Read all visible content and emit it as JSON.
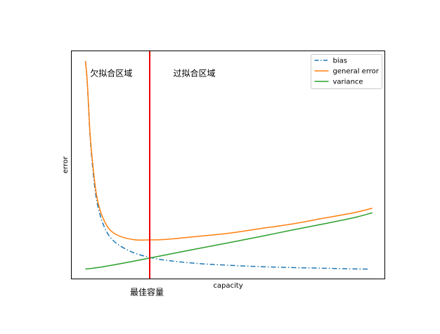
{
  "chart_data": {
    "type": "line",
    "title": "",
    "xlabel": "capacity",
    "ylabel": "error",
    "x_ticks_visible": false,
    "y_ticks_visible": false,
    "grid": false,
    "legend_position": "top-right",
    "xlim": [
      0,
      1
    ],
    "ylim": [
      0,
      1
    ],
    "series": [
      {
        "name": "bias",
        "color": "#1f77b4",
        "linestyle": "dashdot",
        "x": [
          0.045,
          0.05,
          0.055,
          0.06,
          0.07,
          0.08,
          0.09,
          0.1,
          0.12,
          0.15,
          0.2,
          0.25,
          0.3,
          0.4,
          0.5,
          0.6,
          0.7,
          0.8,
          0.9,
          0.95
        ],
        "y": [
          0.955,
          0.88,
          0.75,
          0.62,
          0.46,
          0.35,
          0.29,
          0.245,
          0.19,
          0.15,
          0.114,
          0.095,
          0.082,
          0.068,
          0.06,
          0.054,
          0.05,
          0.047,
          0.044,
          0.043
        ]
      },
      {
        "name": "general error",
        "color": "#ff7f0e",
        "linestyle": "solid",
        "x": [
          0.045,
          0.05,
          0.055,
          0.06,
          0.07,
          0.08,
          0.09,
          0.1,
          0.12,
          0.15,
          0.2,
          0.25,
          0.3,
          0.4,
          0.5,
          0.6,
          0.7,
          0.8,
          0.9,
          0.96
        ],
        "y": [
          0.955,
          0.88,
          0.76,
          0.63,
          0.48,
          0.37,
          0.31,
          0.27,
          0.22,
          0.19,
          0.172,
          0.171,
          0.173,
          0.186,
          0.2,
          0.22,
          0.24,
          0.265,
          0.29,
          0.31
        ]
      },
      {
        "name": "variance",
        "color": "#2ca02c",
        "linestyle": "solid",
        "x": [
          0.045,
          0.1,
          0.2,
          0.3,
          0.4,
          0.5,
          0.6,
          0.7,
          0.8,
          0.9,
          0.96
        ],
        "y": [
          0.043,
          0.053,
          0.078,
          0.105,
          0.132,
          0.158,
          0.185,
          0.213,
          0.24,
          0.268,
          0.29
        ]
      }
    ],
    "vertical_line": {
      "x": 0.25,
      "color": "#ee0000",
      "label": "最佳容量"
    },
    "annotations": [
      {
        "text": "欠拟合区域",
        "x": 0.06,
        "y": 0.89
      },
      {
        "text": "过拟合区域",
        "x": 0.325,
        "y": 0.89
      }
    ]
  }
}
